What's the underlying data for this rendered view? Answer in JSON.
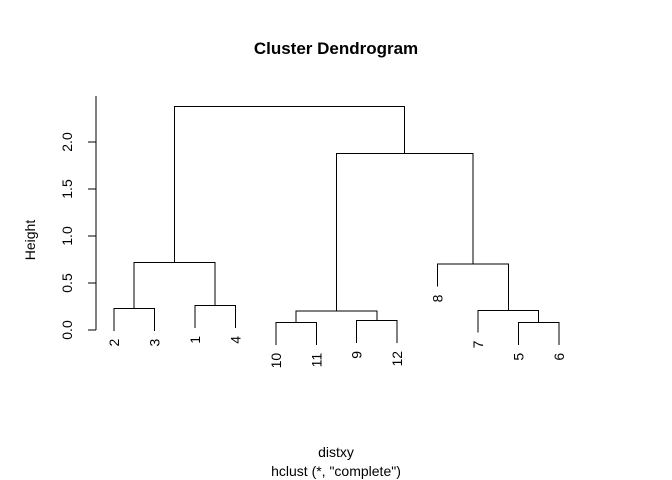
{
  "chart_data": {
    "type": "dendrogram",
    "title": "Cluster Dendrogram",
    "xlabel": "distxy",
    "sublabel": "hclust (*, \"complete\")",
    "ylabel": "Height",
    "yticks": [
      "0.0",
      "0.5",
      "1.0",
      "1.5",
      "2.0"
    ],
    "ytick_values": [
      0.0,
      0.5,
      1.0,
      1.5,
      2.0
    ],
    "ylim": [
      0.0,
      2.5
    ],
    "leaf_order": [
      "2",
      "3",
      "1",
      "4",
      "10",
      "11",
      "9",
      "12",
      "8",
      "7",
      "5",
      "6"
    ],
    "merges": [
      {
        "left": "2",
        "right": "3",
        "height": 0.23
      },
      {
        "left": "1",
        "right": "4",
        "height": 0.26
      },
      {
        "left": "10",
        "right": "11",
        "height": 0.08
      },
      {
        "left": "9",
        "right": "12",
        "height": 0.1
      },
      {
        "left": "5",
        "right": "6",
        "height": 0.08
      },
      {
        "left": "7",
        "right": "(5,6)",
        "height": 0.21
      },
      {
        "left": "(10,11)",
        "right": "(9,12)",
        "height": 0.2
      },
      {
        "left": "8",
        "right": "(7,(5,6))",
        "height": 0.7
      },
      {
        "left": "(2,3)",
        "right": "(1,4)",
        "height": 0.72
      },
      {
        "left": "((10,11),(9,12))",
        "right": "(8,(7,(5,6)))",
        "height": 1.88
      },
      {
        "left": "((2,3),(1,4))",
        "right": "(((10,11),(9,12)),(8,(7,(5,6))))",
        "height": 2.38
      }
    ]
  }
}
